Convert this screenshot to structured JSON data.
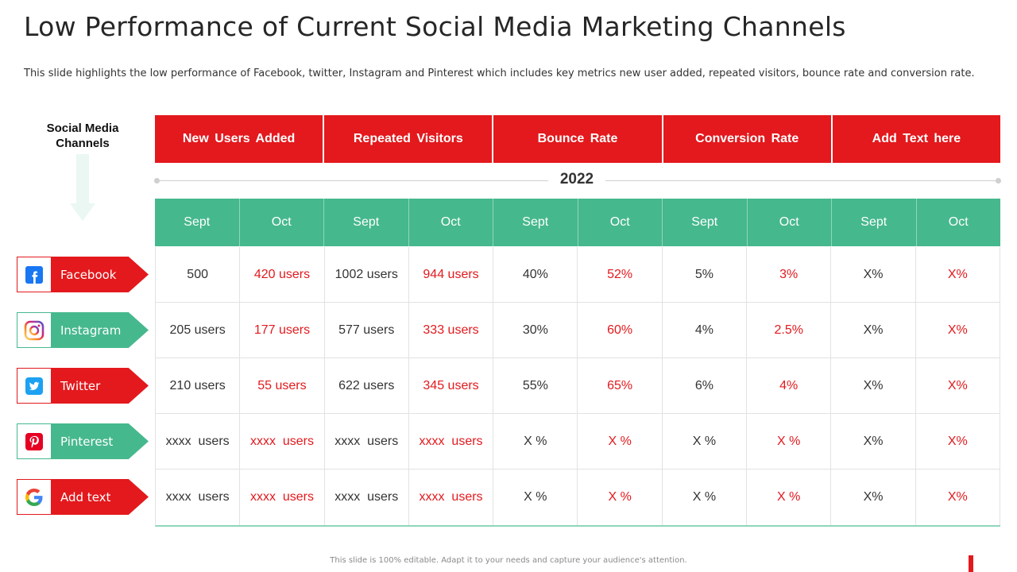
{
  "title": "Low Performance of Current Social Media Marketing Channels",
  "subtitle": "This slide highlights the low performance of Facebook, twitter, Instagram and Pinterest which includes key metrics new user added, repeated visitors, bounce rate and conversion rate.",
  "channels_heading_line1": "Social Media",
  "channels_heading_line2": "Channels",
  "year": "2022",
  "headers": [
    "New Users Added",
    "Repeated  Visitors",
    "Bounce  Rate",
    "Conversion  Rate",
    "Add  Text here"
  ],
  "months": [
    "Sept",
    "Oct",
    "Sept",
    "Oct",
    "Sept",
    "Oct",
    "Sept",
    "Oct",
    "Sept",
    "Oct"
  ],
  "channels": [
    {
      "name": "Facebook",
      "icon": "facebook-icon",
      "color": "#e3191d"
    },
    {
      "name": "Instagram",
      "icon": "instagram-icon",
      "color": "#46b88d"
    },
    {
      "name": "Twitter",
      "icon": "twitter-icon",
      "color": "#e3191d"
    },
    {
      "name": "Pinterest",
      "icon": "pinterest-icon",
      "color": "#46b88d"
    },
    {
      "name": "Add text",
      "icon": "google-icon",
      "color": "#e3191d"
    }
  ],
  "rows": [
    [
      "500",
      "420 users",
      "1002 users",
      "944 users",
      "40%",
      "52%",
      "5%",
      "3%",
      "X%",
      "X%"
    ],
    [
      "205 users",
      "177 users",
      "577 users",
      "333 users",
      "30%",
      "60%",
      "4%",
      "2.5%",
      "X%",
      "X%"
    ],
    [
      "210 users",
      "55 users",
      "622 users",
      "345 users",
      "55%",
      "65%",
      "6%",
      "4%",
      "X%",
      "X%"
    ],
    [
      "xxxx  users",
      "xxxx  users",
      "xxxx  users",
      "xxxx  users",
      "X %",
      "X %",
      "X %",
      "X %",
      "X%",
      "X%"
    ],
    [
      "xxxx  users",
      "xxxx  users",
      "xxxx  users",
      "xxxx  users",
      "X %",
      "X %",
      "X %",
      "X %",
      "X%",
      "X%"
    ]
  ],
  "footer": "This slide is 100% editable. Adapt it to your needs and capture your audience's attention.",
  "colors": {
    "red": "#e3191d",
    "green": "#46b88d"
  }
}
